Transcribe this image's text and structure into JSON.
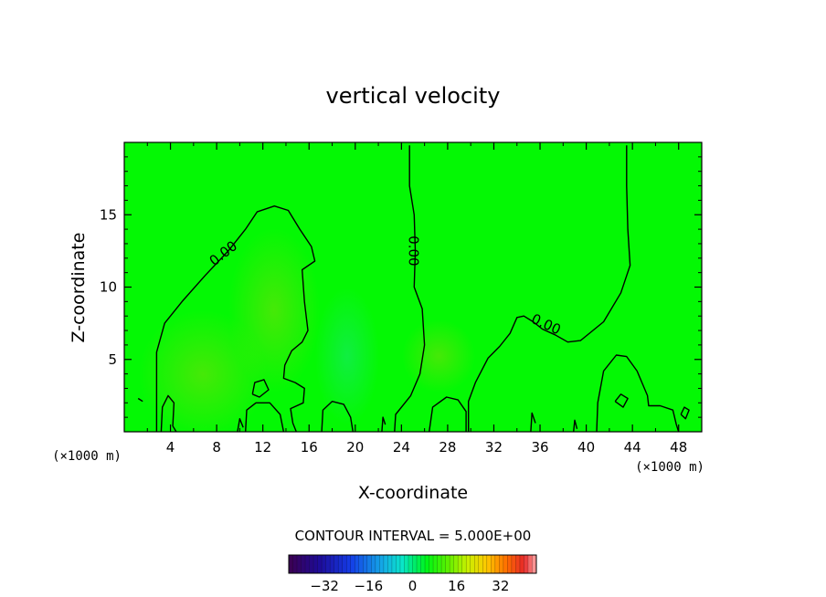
{
  "chart_data": {
    "type": "contour",
    "title": "vertical velocity",
    "xlabel": "X-coordinate",
    "ylabel": "Z-coordinate",
    "x_unit_left": "(×1000 m)",
    "x_unit_right": "(×1000 m)",
    "xlim": [
      0,
      50
    ],
    "ylim": [
      0,
      20
    ],
    "x_ticks": [
      4,
      8,
      12,
      16,
      20,
      24,
      28,
      32,
      36,
      40,
      44,
      48
    ],
    "y_ticks": [
      5,
      10,
      15
    ],
    "contour_labels": [
      {
        "text": "0.00",
        "x": 8.6,
        "y": 12.3,
        "angle": -38
      },
      {
        "text": "0.00",
        "x": 25.0,
        "y": 12.5,
        "angle": 90
      },
      {
        "text": "0.00",
        "x": 36.5,
        "y": 7.4,
        "angle": 25
      }
    ],
    "contour_lines": [
      [
        [
          2.8,
          0
        ],
        [
          2.8,
          5.5
        ],
        [
          3.5,
          7.5
        ],
        [
          5,
          9
        ],
        [
          7,
          10.8
        ],
        [
          9,
          12.5
        ],
        [
          10.5,
          14
        ],
        [
          11.5,
          15.2
        ],
        [
          13,
          15.6
        ],
        [
          14.2,
          15.3
        ],
        [
          15.2,
          14
        ],
        [
          16.2,
          12.8
        ],
        [
          16.5,
          11.8
        ],
        [
          15.4,
          11.2
        ],
        [
          15.6,
          9
        ],
        [
          15.9,
          7
        ],
        [
          15.4,
          6.2
        ],
        [
          14.5,
          5.6
        ],
        [
          13.9,
          4.6
        ],
        [
          13.8,
          3.7
        ],
        [
          14.8,
          3.4
        ],
        [
          15.6,
          3
        ],
        [
          15.5,
          2
        ],
        [
          14.4,
          1.6
        ],
        [
          14.6,
          0.6
        ],
        [
          14.9,
          0
        ]
      ],
      [
        [
          24.7,
          19.8
        ],
        [
          24.7,
          17
        ],
        [
          25.1,
          15
        ],
        [
          25.2,
          12.5
        ],
        [
          25.1,
          10
        ],
        [
          25.8,
          8.5
        ],
        [
          26,
          6
        ],
        [
          25.6,
          4
        ],
        [
          24.8,
          2.5
        ],
        [
          23.5,
          1.2
        ],
        [
          23.4,
          0
        ]
      ],
      [
        [
          43.5,
          19.8
        ],
        [
          43.5,
          17
        ],
        [
          43.6,
          14
        ],
        [
          43.8,
          11.5
        ],
        [
          43,
          9.6
        ],
        [
          41.5,
          7.6
        ],
        [
          39.5,
          6.3
        ],
        [
          38.4,
          6.2
        ],
        [
          37.3,
          6.7
        ],
        [
          36.2,
          7.1
        ],
        [
          35.4,
          7.6
        ],
        [
          34.6,
          8
        ],
        [
          34,
          7.9
        ],
        [
          33.4,
          6.8
        ],
        [
          32.5,
          5.9
        ],
        [
          31.5,
          5.1
        ],
        [
          30.4,
          3.4
        ],
        [
          29.8,
          2.1
        ],
        [
          29.8,
          0
        ]
      ],
      [
        [
          40.9,
          0
        ],
        [
          41,
          2
        ],
        [
          41.5,
          4.2
        ],
        [
          42.6,
          5.3
        ],
        [
          43.5,
          5.2
        ],
        [
          44.4,
          4.2
        ],
        [
          45.3,
          2.5
        ],
        [
          45.4,
          1.8
        ],
        [
          46.4,
          1.8
        ],
        [
          47.5,
          1.5
        ],
        [
          47.8,
          0.5
        ],
        [
          48,
          0
        ]
      ],
      [
        [
          10.5,
          0
        ],
        [
          10.6,
          1.5
        ],
        [
          11.4,
          2
        ],
        [
          12.6,
          2
        ],
        [
          13.5,
          1.2
        ],
        [
          13.8,
          0
        ]
      ],
      [
        [
          3.2,
          0
        ],
        [
          3.3,
          1.7
        ],
        [
          3.8,
          2.5
        ],
        [
          4.3,
          2
        ],
        [
          4.2,
          0.4
        ],
        [
          4.5,
          0
        ]
      ],
      [
        [
          17.1,
          0
        ],
        [
          17.2,
          1.5
        ],
        [
          18,
          2.1
        ],
        [
          19,
          1.9
        ],
        [
          19.6,
          1
        ],
        [
          19.8,
          0
        ]
      ],
      [
        [
          26.4,
          0
        ],
        [
          26.7,
          1.7
        ],
        [
          27.9,
          2.4
        ],
        [
          28.9,
          2.2
        ],
        [
          29.6,
          1.4
        ],
        [
          29.6,
          0
        ]
      ],
      [
        [
          11.1,
          2.6
        ],
        [
          11.3,
          3.4
        ],
        [
          12.1,
          3.6
        ],
        [
          12.5,
          2.9
        ],
        [
          11.7,
          2.4
        ],
        [
          11.1,
          2.6
        ]
      ],
      [
        [
          42.5,
          2.1
        ],
        [
          43,
          2.6
        ],
        [
          43.6,
          2.3
        ],
        [
          43.2,
          1.7
        ],
        [
          42.5,
          2.1
        ]
      ],
      [
        [
          48.2,
          1.2
        ],
        [
          48.5,
          1.7
        ],
        [
          48.9,
          1.5
        ],
        [
          48.6,
          0.9
        ],
        [
          48.2,
          1.2
        ]
      ],
      [
        [
          1.2,
          2.3
        ],
        [
          1.6,
          2.1
        ]
      ],
      [
        [
          9.8,
          0
        ],
        [
          10,
          0.9
        ],
        [
          10.3,
          0.3
        ]
      ],
      [
        [
          22.3,
          0
        ],
        [
          22.4,
          1
        ],
        [
          22.6,
          0.5
        ]
      ],
      [
        [
          35.2,
          0
        ],
        [
          35.3,
          1.3
        ],
        [
          35.6,
          0.6
        ]
      ],
      [
        [
          38.9,
          0
        ],
        [
          39,
          0.8
        ],
        [
          39.2,
          0.2
        ]
      ]
    ],
    "colorbar": {
      "label": "CONTOUR INTERVAL = 5.000E+00",
      "range": [
        -45,
        45
      ],
      "ticks": [
        -32,
        -16,
        0,
        16,
        32
      ],
      "steps": 60
    },
    "field_description_colors": {
      "background": "#04F804",
      "warm_patch": "#5EE20C",
      "cool_patch": "#1EF05A"
    }
  }
}
